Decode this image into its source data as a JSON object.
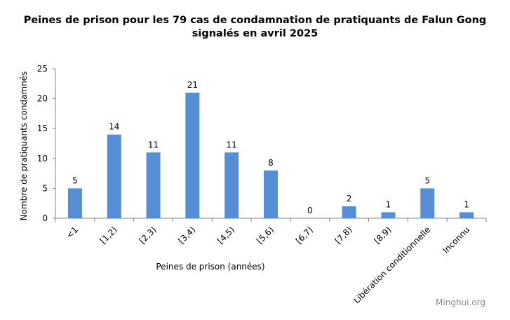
{
  "chart_data": {
    "type": "bar",
    "title_line1": "Peines de prison pour les 79 cas de condamnation de pratiquants de Falun Gong",
    "title_line2": "signalés en avril 2025",
    "xlabel": "Peines de prison (années)",
    "ylabel": "Nombre  de pratiquants condamnés",
    "categories": [
      "<1",
      "[1,2)",
      "[2,3)",
      "[3,4)",
      "[4,5)",
      "[5,6)",
      "[6,7)",
      "[7,8)",
      "[8,9)",
      "Libération conditionnelle",
      "Inconnu"
    ],
    "values": [
      5,
      14,
      11,
      21,
      11,
      8,
      0,
      2,
      1,
      5,
      1
    ],
    "ylim": [
      0,
      25
    ],
    "yticks": [
      0,
      5,
      10,
      15,
      20,
      25
    ],
    "bar_color": "#558ED5",
    "grid": false,
    "data_labels": true
  },
  "watermark": "Minghui.org"
}
